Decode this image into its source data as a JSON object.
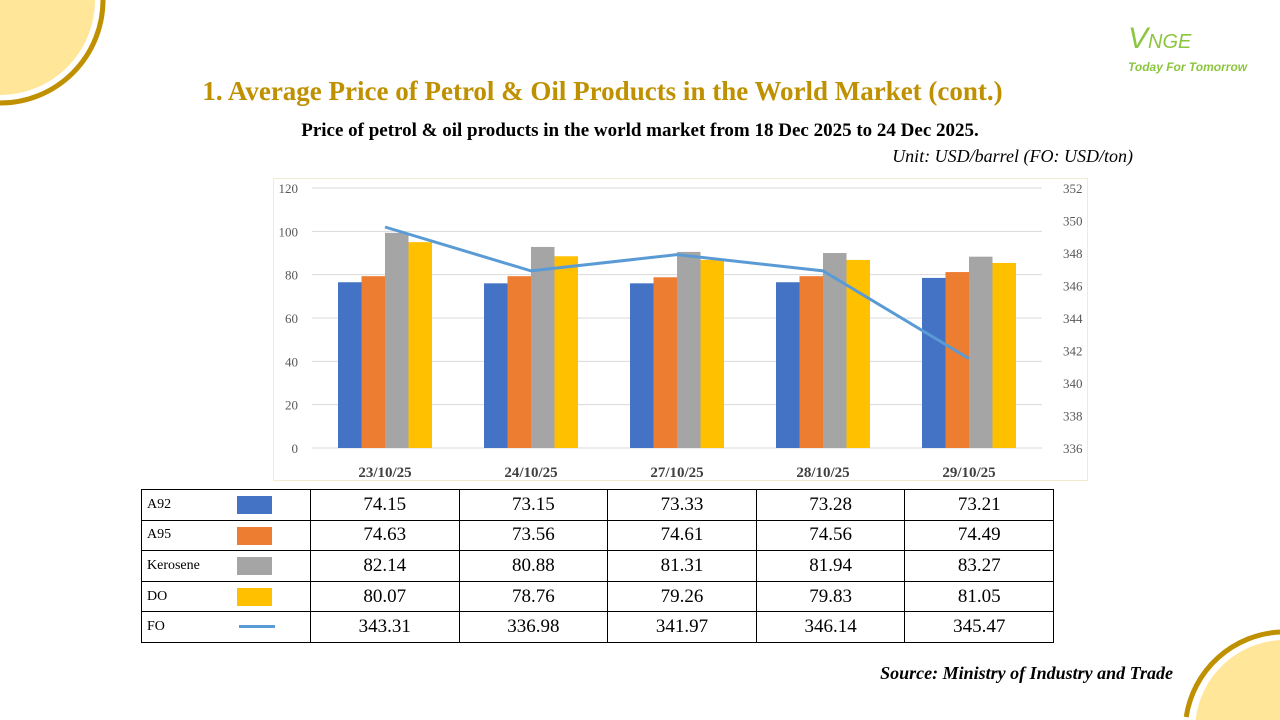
{
  "title": "1. Average Price of Petrol & Oil Products in the World Market (cont.)",
  "subtitle": "Price of petrol & oil products in the world market from 18 Dec 2025 to 24 Dec 2025.",
  "unit": "Unit: USD/barrel (FO: USD/ton)",
  "logo": {
    "mark": "V",
    "text": "NGE",
    "tagline": "Today For Tomorrow"
  },
  "source": "Source: Ministry of Industry and Trade",
  "chart_data": {
    "type": "bar",
    "categories": [
      "23/10/25",
      "24/10/25",
      "27/10/25",
      "28/10/25",
      "29/10/25"
    ],
    "ylim": [
      0,
      120
    ],
    "yticks": [
      "0",
      "20",
      "40",
      "60",
      "80",
      "100",
      "120"
    ],
    "y2lim": [
      336,
      352
    ],
    "y2ticks": [
      "336",
      "338",
      "340",
      "342",
      "344",
      "346",
      "348",
      "350",
      "352"
    ],
    "grid": true,
    "series": [
      {
        "name": "A92",
        "type": "bar",
        "color": "#4472C4",
        "values": [
          76.5,
          76,
          76,
          76.5,
          78.5
        ]
      },
      {
        "name": "A95",
        "type": "bar",
        "color": "#ED7D31",
        "values": [
          79.3,
          79.3,
          78.8,
          79.3,
          81.2
        ]
      },
      {
        "name": "Kerosene",
        "type": "bar",
        "color": "#A5A5A5",
        "values": [
          99.3,
          92.8,
          90.5,
          90,
          88.3
        ]
      },
      {
        "name": "DO",
        "type": "bar",
        "color": "#FFC000",
        "values": [
          95,
          88.5,
          86.8,
          86.8,
          85.4
        ]
      },
      {
        "name": "FO",
        "type": "line",
        "axis": "right",
        "color": "#5B9BD5",
        "values": [
          349.6,
          346.9,
          347.9,
          346.9,
          341.5
        ]
      }
    ]
  },
  "table": {
    "rows": [
      {
        "label": "A92",
        "values": [
          "74.15",
          "73.15",
          "73.33",
          "73.28",
          "73.21"
        ]
      },
      {
        "label": "A95",
        "values": [
          "74.63",
          "73.56",
          "74.61",
          "74.56",
          "74.49"
        ]
      },
      {
        "label": "Kerosene",
        "values": [
          "82.14",
          "80.88",
          "81.31",
          "81.94",
          "83.27"
        ]
      },
      {
        "label": "DO",
        "values": [
          "80.07",
          "78.76",
          "79.26",
          "79.83",
          "81.05"
        ]
      },
      {
        "label": "FO",
        "values": [
          "343.31",
          "336.98",
          "341.97",
          "346.14",
          "345.47"
        ]
      }
    ]
  }
}
